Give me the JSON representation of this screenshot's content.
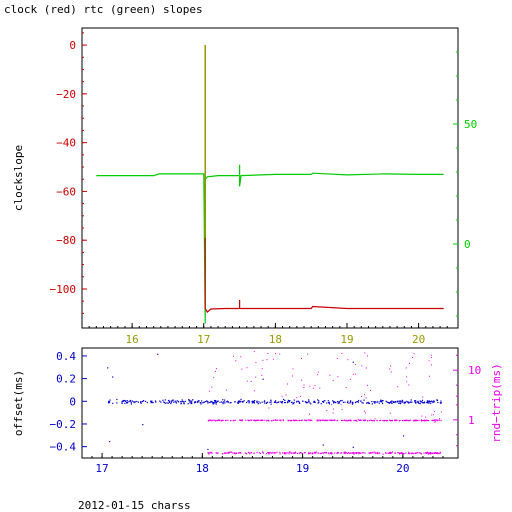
{
  "title": "clock (red) rtc (green) slopes",
  "footer": "2012-01-15 charss",
  "colors": {
    "clock": "#cc0000",
    "rtc": "#00cc00",
    "offset": "#0000cc",
    "rtt": "#ee00ee",
    "axes": "#000000",
    "gold": "#999900"
  },
  "chart_data": [
    {
      "type": "line",
      "title": "clock (red) rtc (green) slopes",
      "ylabel": "clockslope",
      "xlim": [
        15.3,
        20.55
      ],
      "x_ticks": [
        "16",
        "17",
        "18",
        "19",
        "20"
      ],
      "ylim": [
        -116,
        7
      ],
      "y_ticks": [
        "0",
        "−20",
        "−40",
        "−60",
        "−80",
        "−100"
      ],
      "y2lim": [
        -35,
        90
      ],
      "y2_ticks": [
        "50",
        "0"
      ],
      "grid": false,
      "series": [
        {
          "name": "clock",
          "color": "#cc0000",
          "axis": "left",
          "x": [
            17.02,
            17.02,
            17.02,
            17.05,
            17.1,
            17.3,
            17.5,
            17.5,
            17.5,
            17.51,
            17.8,
            18.3,
            18.5,
            18.52,
            19.0,
            19.5,
            20.0,
            20.35
          ],
          "y": [
            0,
            -79,
            -108,
            -109.5,
            -108.2,
            -108,
            -108,
            -104.5,
            -108,
            -108,
            -108,
            -108,
            -108,
            -107.2,
            -108,
            -108,
            -108,
            -108
          ]
        },
        {
          "name": "rtc",
          "color": "#00cc00",
          "axis": "right",
          "x": [
            15.5,
            16.3,
            16.38,
            17.0,
            17.02,
            17.02,
            17.05,
            17.2,
            17.5,
            17.5,
            17.5,
            17.52,
            18.0,
            18.5,
            18.52,
            19.0,
            19.5,
            20.0,
            20.35
          ],
          "y": [
            28.5,
            28.5,
            29.2,
            29.2,
            -33,
            27,
            28,
            28.5,
            28.5,
            33,
            24,
            28.5,
            29,
            29,
            29.5,
            28.8,
            29.2,
            29,
            29
          ]
        }
      ]
    },
    {
      "type": "scatter",
      "ylabel": "offset(ms)",
      "y2label": "rnd−trip(ms)",
      "xlim": [
        16.8,
        20.55
      ],
      "x_ticks": [
        "17",
        "18",
        "19",
        "20"
      ],
      "ylim": [
        -0.5,
        0.47
      ],
      "y_ticks": [
        "0.4",
        "0.2",
        "0",
        "−0.2",
        "−0.4"
      ],
      "y2_ticks": [
        "10",
        "1"
      ],
      "y2_scale": "log",
      "y2lim": [
        0.17,
        28
      ],
      "grid": false,
      "series": [
        {
          "name": "offset",
          "color": "#0000cc",
          "axis": "left",
          "x_range": [
            17.05,
            20.38
          ],
          "typical": 0.0,
          "spread": 0.03,
          "outliers": [
            [
              17.05,
              0.3
            ],
            [
              17.07,
              -0.35
            ],
            [
              17.1,
              0.22
            ],
            [
              17.55,
              0.42
            ],
            [
              17.4,
              -0.2
            ],
            [
              18.05,
              -0.42
            ],
            [
              18.6,
              0.2
            ],
            [
              19.2,
              -0.38
            ],
            [
              19.5,
              0.35
            ],
            [
              19.5,
              -0.4
            ],
            [
              20.0,
              -0.3
            ]
          ]
        },
        {
          "name": "rtt",
          "color": "#ee00ee",
          "axis": "right",
          "x_range": [
            18.05,
            20.38
          ],
          "bands": [
            1.0,
            0.22
          ],
          "scatter_range": [
            0.9,
            25
          ]
        }
      ]
    }
  ]
}
